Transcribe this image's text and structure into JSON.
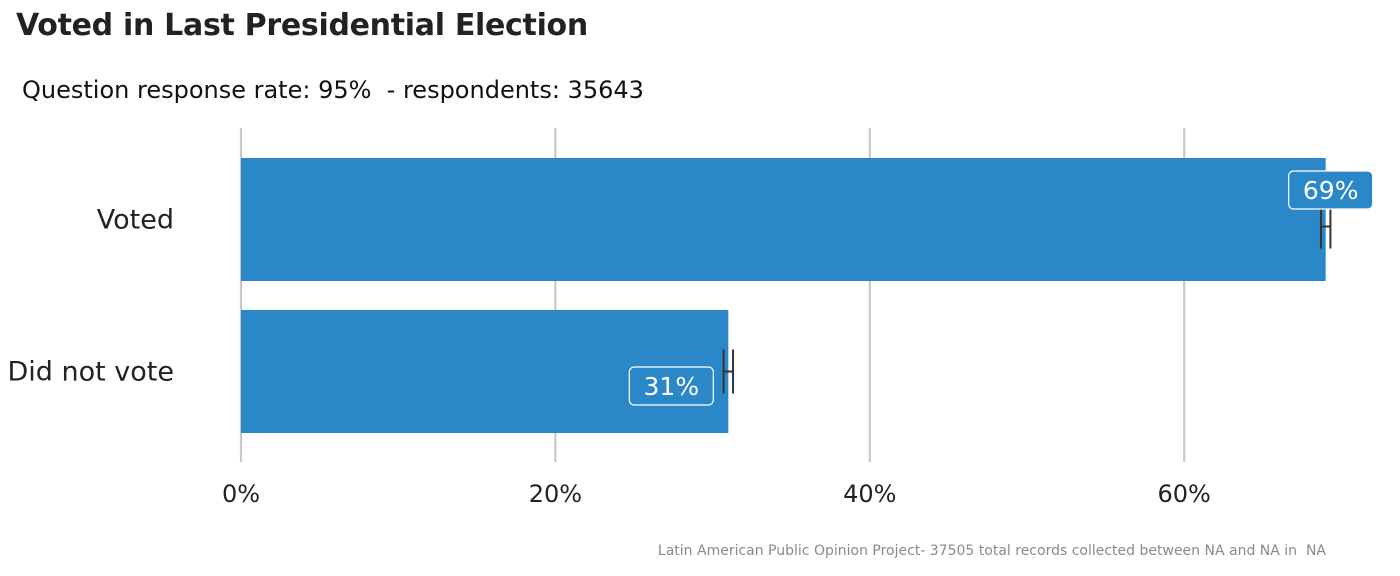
{
  "header": {
    "title": "Voted in Last Presidential Election",
    "subtitle": "Question response rate: 95%  - respondents: 35643"
  },
  "footer": {
    "caption": "Latin American Public Opinion Project- 37505 total records collected between NA and NA in  NA"
  },
  "colors": {
    "bar": "#2b88c8",
    "grid": "#c8c8c8",
    "errorbar": "#333333"
  },
  "chart_data": {
    "type": "bar",
    "orientation": "horizontal",
    "categories": [
      "Voted",
      "Did not vote"
    ],
    "values": [
      69,
      31
    ],
    "value_labels": [
      "69%",
      "31%"
    ],
    "error_bars": [
      [
        68.7,
        69.3
      ],
      [
        30.7,
        31.3
      ]
    ],
    "xlim": [
      0,
      70
    ],
    "x_ticks": [
      0,
      20,
      40,
      60
    ],
    "x_tick_labels": [
      "0%",
      "20%",
      "40%",
      "60%"
    ],
    "grid": "vertical",
    "legend": "none"
  }
}
